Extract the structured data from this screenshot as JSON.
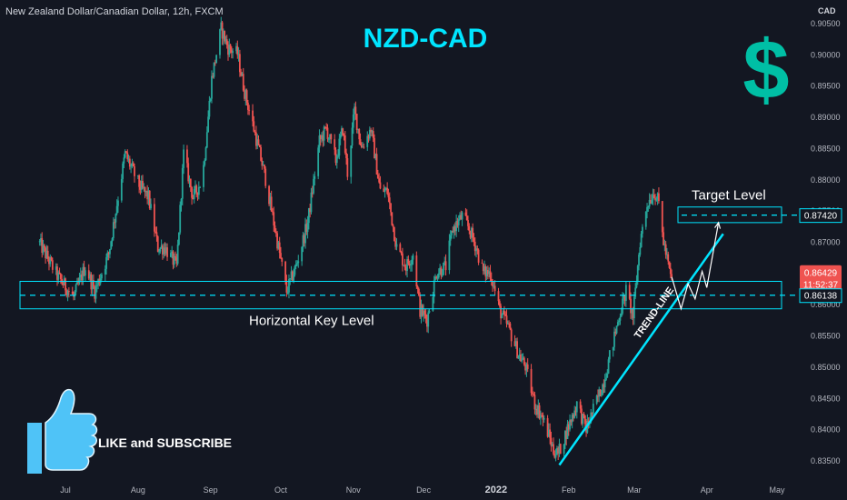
{
  "header": {
    "symbol_title": "New Zealand Dollar/Canadian Dollar, 12h, FXCM",
    "currency": "CAD"
  },
  "overlay": {
    "pair_title": "NZD-CAD",
    "dollar_sign": "$",
    "target_label": "Target Level",
    "key_level_label": "Horizontal Key Level",
    "trendline_label": "TREND-LINE",
    "cta_text": "LIKE and SUBSCRIBE",
    "current_price": "0.86429",
    "countdown": "11:52:37",
    "key_price": "0.86138",
    "target_price": "0.87420"
  },
  "colors": {
    "background": "#131722",
    "up": "#26a69a",
    "down": "#ef5350",
    "accent": "#00e5ff",
    "axis_text": "#b2b5be"
  },
  "chart_data": {
    "type": "candlestick",
    "y_axis_ticks": [
      "0.83500",
      "0.84000",
      "0.84500",
      "0.85000",
      "0.85500",
      "0.86000",
      "0.86500",
      "0.87000",
      "0.87500",
      "0.88000",
      "0.88500",
      "0.89000",
      "0.89500",
      "0.90000",
      "0.90500"
    ],
    "x_axis_ticks": [
      "Jul",
      "Aug",
      "Sep",
      "Oct",
      "Nov",
      "Dec",
      "2022",
      "Feb",
      "Mar",
      "Apr",
      "May"
    ],
    "ylim": [
      0.8325,
      0.907
    ],
    "price_path": [
      [
        "2021-06-20",
        0.87
      ],
      [
        "2021-06-28",
        0.8645
      ],
      [
        "2021-07-05",
        0.861
      ],
      [
        "2021-07-10",
        0.866
      ],
      [
        "2021-07-14",
        0.862
      ],
      [
        "2021-07-20",
        0.868
      ],
      [
        "2021-07-27",
        0.884
      ],
      [
        "2021-08-02",
        0.879
      ],
      [
        "2021-08-06",
        0.877
      ],
      [
        "2021-08-10",
        0.869
      ],
      [
        "2021-08-13",
        0.869
      ],
      [
        "2021-08-18",
        0.866
      ],
      [
        "2021-08-21",
        0.884
      ],
      [
        "2021-08-25",
        0.877
      ],
      [
        "2021-08-29",
        0.88
      ],
      [
        "2021-09-02",
        0.896
      ],
      [
        "2021-09-06",
        0.904
      ],
      [
        "2021-09-09",
        0.901
      ],
      [
        "2021-09-13",
        0.9
      ],
      [
        "2021-09-16",
        0.894
      ],
      [
        "2021-09-20",
        0.888
      ],
      [
        "2021-09-25",
        0.88
      ],
      [
        "2021-09-30",
        0.87
      ],
      [
        "2021-10-04",
        0.862
      ],
      [
        "2021-10-08",
        0.866
      ],
      [
        "2021-10-13",
        0.873
      ],
      [
        "2021-10-18",
        0.886
      ],
      [
        "2021-10-21",
        0.888
      ],
      [
        "2021-10-25",
        0.883
      ],
      [
        "2021-10-28",
        0.888
      ],
      [
        "2021-10-30",
        0.881
      ],
      [
        "2021-11-02",
        0.891
      ],
      [
        "2021-11-05",
        0.885
      ],
      [
        "2021-11-09",
        0.888
      ],
      [
        "2021-11-13",
        0.878
      ],
      [
        "2021-11-16",
        0.878
      ],
      [
        "2021-11-20",
        0.869
      ],
      [
        "2021-11-24",
        0.866
      ],
      [
        "2021-11-27",
        0.868
      ],
      [
        "2021-11-30",
        0.859
      ],
      [
        "2021-12-03",
        0.8575
      ],
      [
        "2021-12-07",
        0.865
      ],
      [
        "2021-12-11",
        0.866
      ],
      [
        "2021-12-14",
        0.872
      ],
      [
        "2021-12-18",
        0.874
      ],
      [
        "2021-12-21",
        0.872
      ],
      [
        "2021-12-24",
        0.869
      ],
      [
        "2021-12-27",
        0.865
      ],
      [
        "2021-12-30",
        0.865
      ],
      [
        "2022-01-03",
        0.859
      ],
      [
        "2022-01-07",
        0.856
      ],
      [
        "2022-01-11",
        0.852
      ],
      [
        "2022-01-14",
        0.85
      ],
      [
        "2022-01-18",
        0.844
      ],
      [
        "2022-01-21",
        0.842
      ],
      [
        "2022-01-24",
        0.839
      ],
      [
        "2022-01-26",
        0.8365
      ],
      [
        "2022-01-28",
        0.836
      ],
      [
        "2022-02-01",
        0.84
      ],
      [
        "2022-02-05",
        0.844
      ],
      [
        "2022-02-09",
        0.84
      ],
      [
        "2022-02-13",
        0.844
      ],
      [
        "2022-02-16",
        0.847
      ],
      [
        "2022-02-20",
        0.853
      ],
      [
        "2022-02-23",
        0.858
      ],
      [
        "2022-02-26",
        0.862
      ],
      [
        "2022-03-01",
        0.858
      ],
      [
        "2022-03-04",
        0.87
      ],
      [
        "2022-03-07",
        0.876
      ],
      [
        "2022-03-10",
        0.878
      ],
      [
        "2022-03-12",
        0.876
      ],
      [
        "2022-03-14",
        0.87
      ],
      [
        "2022-03-17",
        0.8643
      ]
    ],
    "annotations": {
      "horizontal_key_level": 0.86138,
      "key_zone": [
        0.8592,
        0.8636
      ],
      "target_level": 0.8742,
      "target_zone": [
        0.873,
        0.8755
      ],
      "current_price": 0.86429,
      "trend_line": [
        [
          "2022-01-28",
          0.8342
        ],
        [
          "2022-04-08",
          0.8712
        ]
      ],
      "projected_path": [
        [
          "2022-03-17",
          0.8643
        ],
        [
          "2022-03-21",
          0.8592
        ],
        [
          "2022-03-24",
          0.8632
        ],
        [
          "2022-03-27",
          0.8608
        ],
        [
          "2022-03-30",
          0.8652
        ],
        [
          "2022-04-01",
          0.8626
        ],
        [
          "2022-04-06",
          0.873
        ]
      ]
    }
  }
}
